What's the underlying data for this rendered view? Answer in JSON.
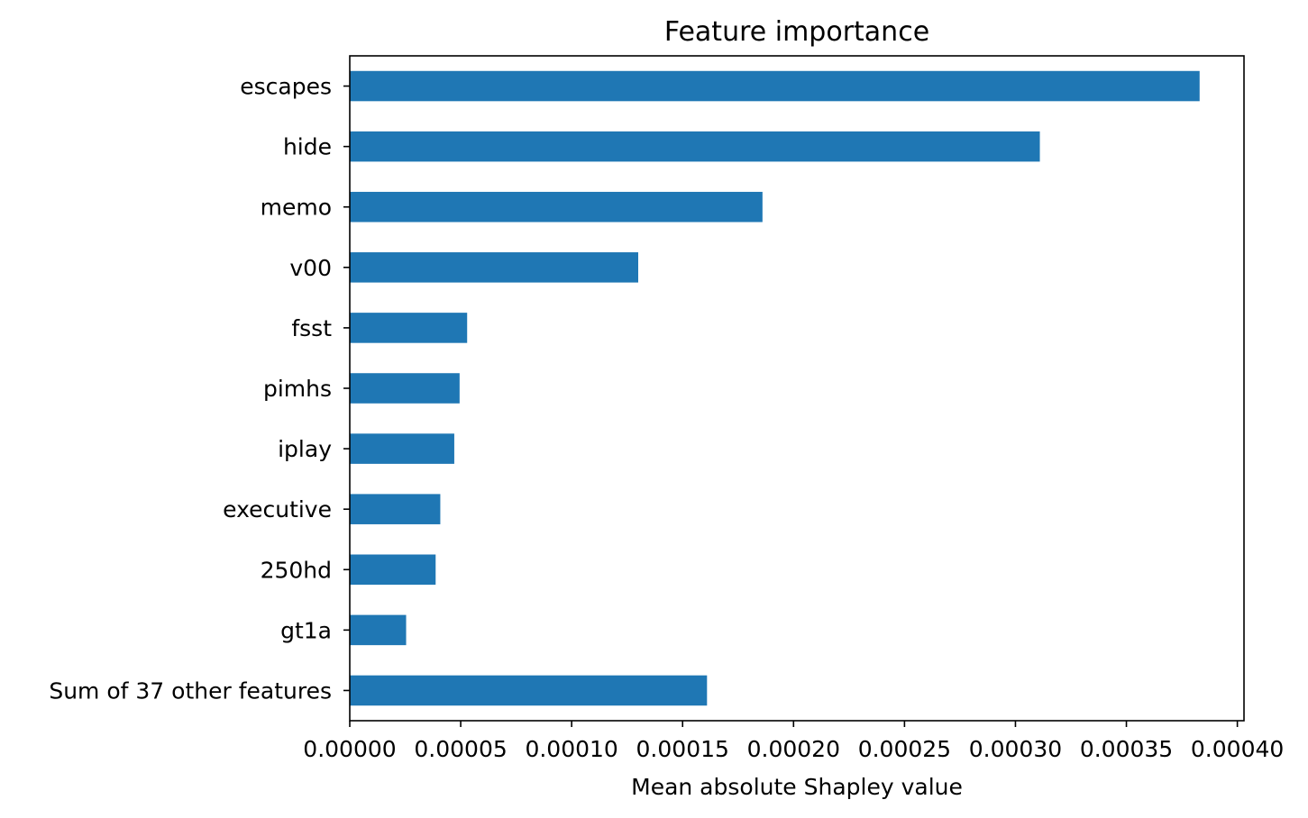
{
  "chart_data": {
    "type": "bar",
    "orientation": "horizontal",
    "title": "Feature importance",
    "xlabel": "Mean absolute Shapley value",
    "ylabel": "",
    "categories": [
      "escapes",
      "hide",
      "memo",
      "v00",
      "fsst",
      "pimhs",
      "iplay",
      "executive",
      "250hd",
      "gt1a",
      "Sum of 37 other features"
    ],
    "values": [
      0.000383,
      0.000311,
      0.000186,
      0.00013,
      5.29e-05,
      4.95e-05,
      4.71e-05,
      4.08e-05,
      3.87e-05,
      2.54e-05,
      0.000161
    ],
    "xlim": [
      0,
      0.000403
    ],
    "xticks": [
      0,
      5e-05,
      0.0001,
      0.00015,
      0.0002,
      0.00025,
      0.0003,
      0.00035,
      0.0004
    ],
    "xtick_labels": [
      "0.00000",
      "0.00005",
      "0.00010",
      "0.00015",
      "0.00020",
      "0.00025",
      "0.00030",
      "0.00035",
      "0.00040"
    ],
    "grid": false,
    "legend": "none",
    "bar_color": "#1f77b4"
  }
}
